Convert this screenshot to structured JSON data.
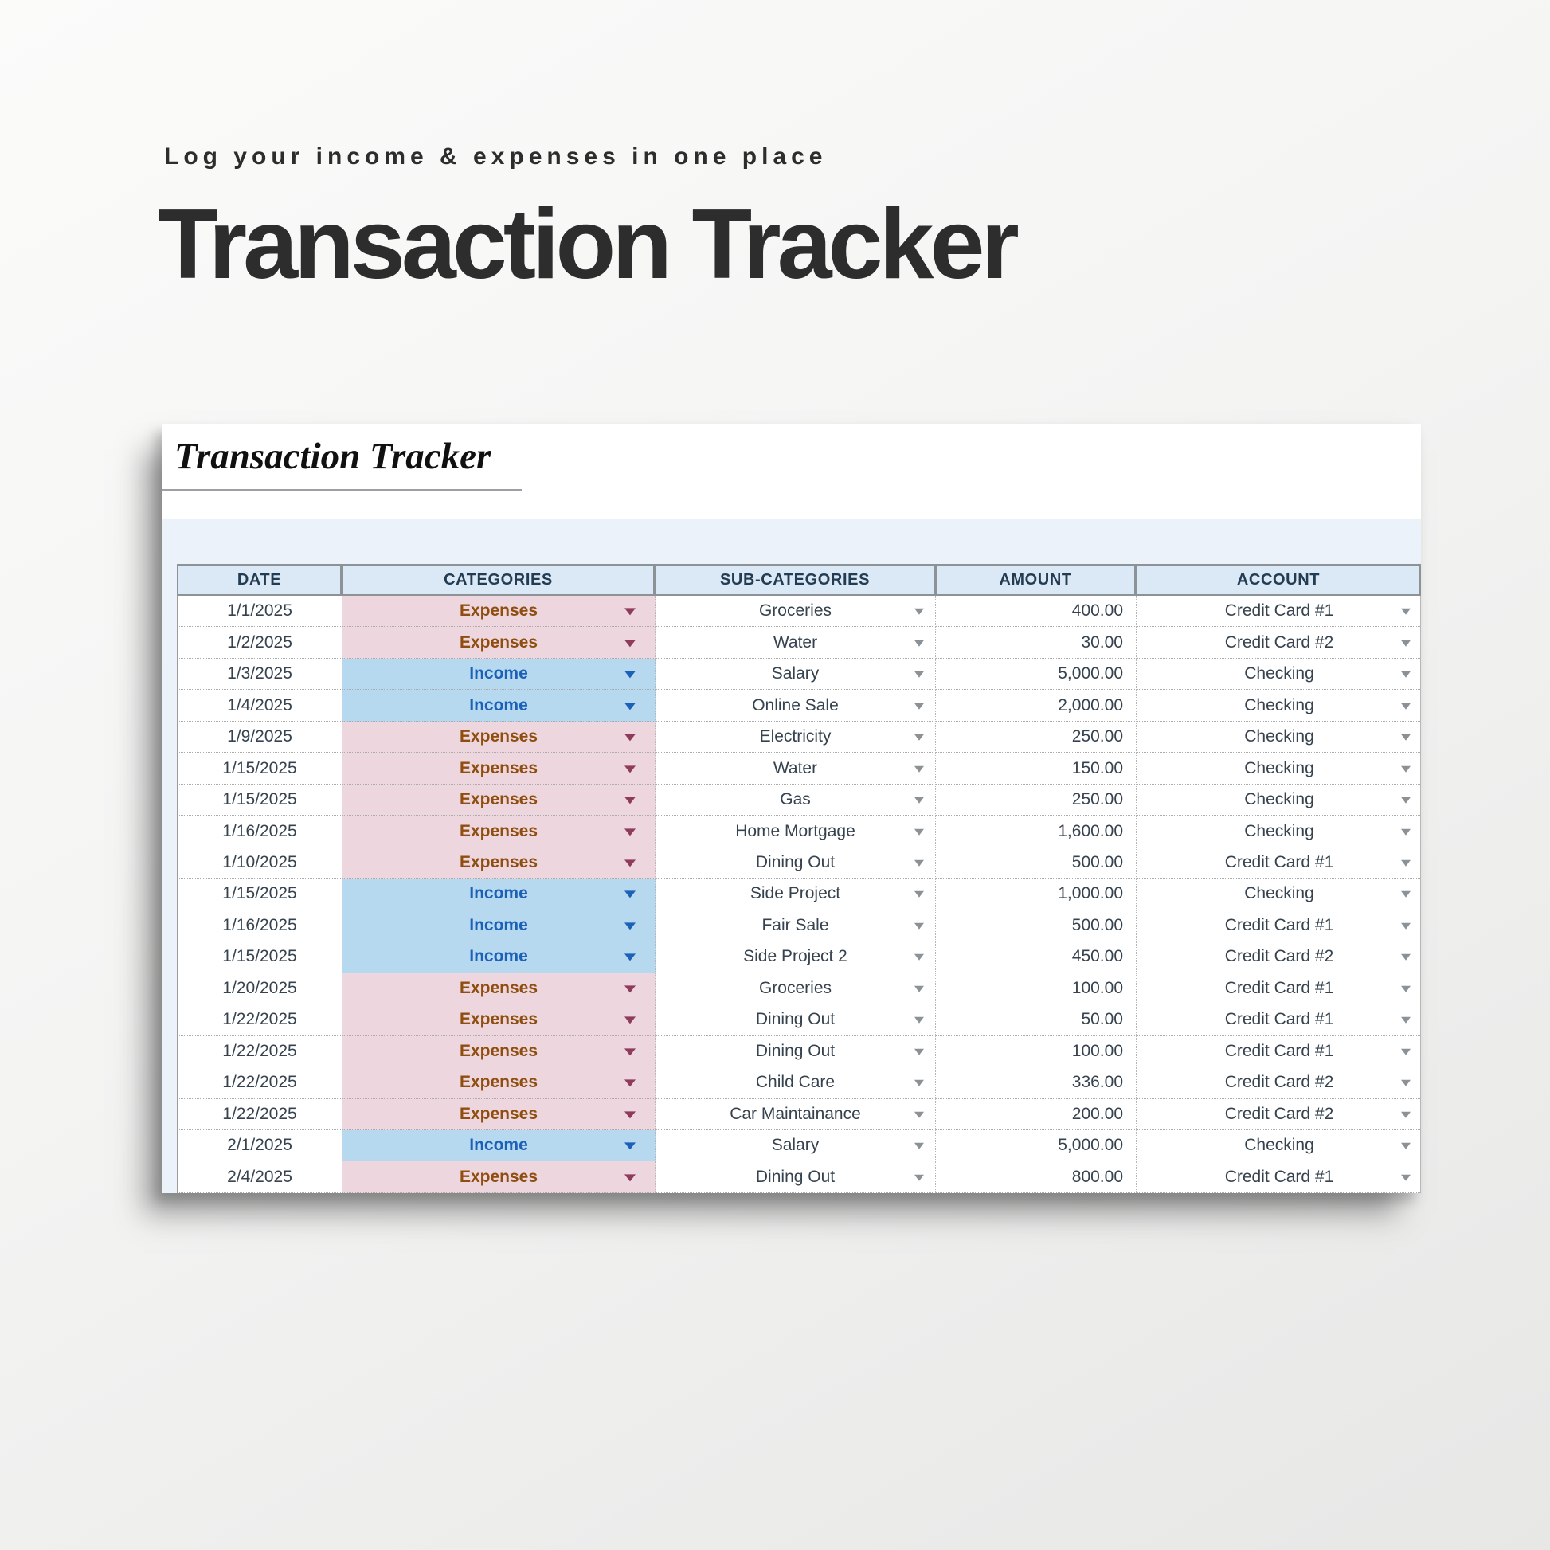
{
  "page": {
    "eyebrow": "Log your income & expenses in one place",
    "title": "Transaction Tracker"
  },
  "sheet": {
    "title": "Transaction Tracker",
    "columns": [
      "DATE",
      "CATEGORIES",
      "SUB-CATEGORIES",
      "AMOUNT",
      "ACCOUNT"
    ],
    "category_options_visible": [
      "Expenses",
      "Income"
    ],
    "rows": [
      {
        "date": "1/1/2025",
        "category": "Expenses",
        "type": "expense",
        "subcategory": "Groceries",
        "amount": "400.00",
        "account": "Credit Card #1"
      },
      {
        "date": "1/2/2025",
        "category": "Expenses",
        "type": "expense",
        "subcategory": "Water",
        "amount": "30.00",
        "account": "Credit Card #2"
      },
      {
        "date": "1/3/2025",
        "category": "Income",
        "type": "income",
        "subcategory": "Salary",
        "amount": "5,000.00",
        "account": "Checking"
      },
      {
        "date": "1/4/2025",
        "category": "Income",
        "type": "income",
        "subcategory": "Online Sale",
        "amount": "2,000.00",
        "account": "Checking"
      },
      {
        "date": "1/9/2025",
        "category": "Expenses",
        "type": "expense",
        "subcategory": "Electricity",
        "amount": "250.00",
        "account": "Checking"
      },
      {
        "date": "1/15/2025",
        "category": "Expenses",
        "type": "expense",
        "subcategory": "Water",
        "amount": "150.00",
        "account": "Checking"
      },
      {
        "date": "1/15/2025",
        "category": "Expenses",
        "type": "expense",
        "subcategory": "Gas",
        "amount": "250.00",
        "account": "Checking"
      },
      {
        "date": "1/16/2025",
        "category": "Expenses",
        "type": "expense",
        "subcategory": "Home Mortgage",
        "amount": "1,600.00",
        "account": "Checking"
      },
      {
        "date": "1/10/2025",
        "category": "Expenses",
        "type": "expense",
        "subcategory": "Dining Out",
        "amount": "500.00",
        "account": "Credit Card #1"
      },
      {
        "date": "1/15/2025",
        "category": "Income",
        "type": "income",
        "subcategory": "Side Project",
        "amount": "1,000.00",
        "account": "Checking"
      },
      {
        "date": "1/16/2025",
        "category": "Income",
        "type": "income",
        "subcategory": "Fair Sale",
        "amount": "500.00",
        "account": "Credit Card #1"
      },
      {
        "date": "1/15/2025",
        "category": "Income",
        "type": "income",
        "subcategory": "Side Project 2",
        "amount": "450.00",
        "account": "Credit Card #2"
      },
      {
        "date": "1/20/2025",
        "category": "Expenses",
        "type": "expense",
        "subcategory": "Groceries",
        "amount": "100.00",
        "account": "Credit Card #1"
      },
      {
        "date": "1/22/2025",
        "category": "Expenses",
        "type": "expense",
        "subcategory": "Dining Out",
        "amount": "50.00",
        "account": "Credit Card #1"
      },
      {
        "date": "1/22/2025",
        "category": "Expenses",
        "type": "expense",
        "subcategory": "Dining Out",
        "amount": "100.00",
        "account": "Credit Card #1"
      },
      {
        "date": "1/22/2025",
        "category": "Expenses",
        "type": "expense",
        "subcategory": "Child Care",
        "amount": "336.00",
        "account": "Credit Card #2"
      },
      {
        "date": "1/22/2025",
        "category": "Expenses",
        "type": "expense",
        "subcategory": "Car Maintainance",
        "amount": "200.00",
        "account": "Credit Card #2"
      },
      {
        "date": "2/1/2025",
        "category": "Income",
        "type": "income",
        "subcategory": "Salary",
        "amount": "5,000.00",
        "account": "Checking"
      },
      {
        "date": "2/4/2025",
        "category": "Expenses",
        "type": "expense",
        "subcategory": "Dining Out",
        "amount": "800.00",
        "account": "Credit Card #1"
      }
    ]
  },
  "colors": {
    "heading_text": "#2d2d2d",
    "card_bg": "#ffffff",
    "panel_bg": "#ebf2fa",
    "header_cell_bg": "#dbe8f6",
    "header_cell_text": "#223c53",
    "expense_bg": "#edd6de",
    "expense_text": "#8f4e0f",
    "expense_arrow": "#8f3c5c",
    "income_bg": "#b7d9f0",
    "income_text": "#1c61b7",
    "gray_arrow": "#8c9196",
    "cell_text": "#36434f"
  }
}
